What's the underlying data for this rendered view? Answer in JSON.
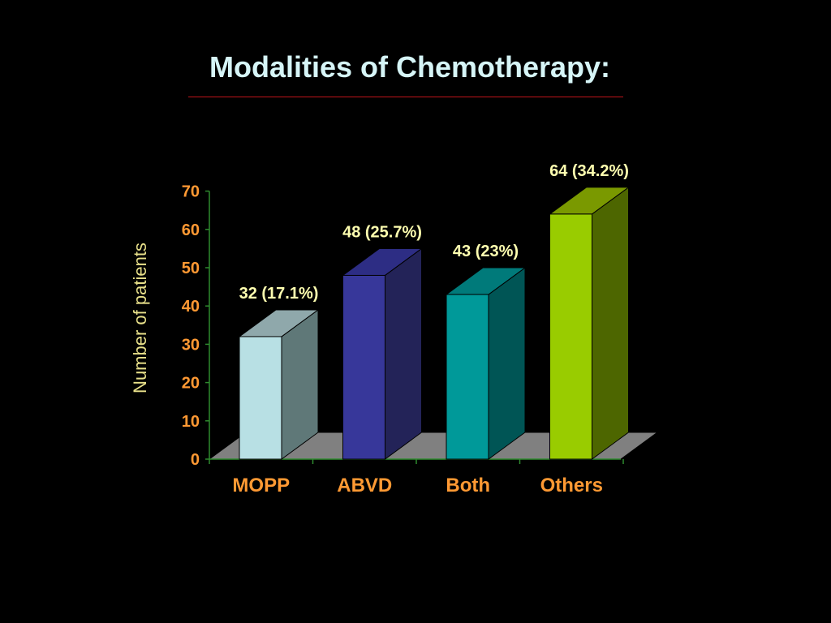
{
  "title": "Modalities of Chemotherapy:",
  "colors": {
    "background": "#000000",
    "title": "#d6f5f7",
    "title_rule": "#c0141a",
    "tick_labels": "#ff9933",
    "data_labels": "#ffffb0",
    "axis_title": "#e8e08a",
    "floor": "#808080",
    "axis_line": "#2e8b2e"
  },
  "chart_data": {
    "type": "bar",
    "categories": [
      "MOPP",
      "ABVD",
      "Both",
      "Others"
    ],
    "values": [
      32,
      48,
      43,
      64
    ],
    "data_labels": [
      "32 (17.1%)",
      "48 (25.7%)",
      "43 (23%)",
      "64 (34.2%)"
    ],
    "bar_colors": [
      {
        "front": "#b8e0e4",
        "side": "#5f7878",
        "top": "#8fa8ab"
      },
      {
        "front": "#37379a",
        "side": "#232358",
        "top": "#2d2d84"
      },
      {
        "front": "#009999",
        "side": "#005555",
        "top": "#007a7a"
      },
      {
        "front": "#99cc00",
        "side": "#4d6600",
        "top": "#7a9900"
      }
    ],
    "ylabel": "Number of patients",
    "xlabel": "",
    "ylim": [
      0,
      70
    ],
    "yticks": [
      0,
      10,
      20,
      30,
      40,
      50,
      60,
      70
    ],
    "style": "3d-column",
    "grid": false,
    "legend": "none"
  }
}
